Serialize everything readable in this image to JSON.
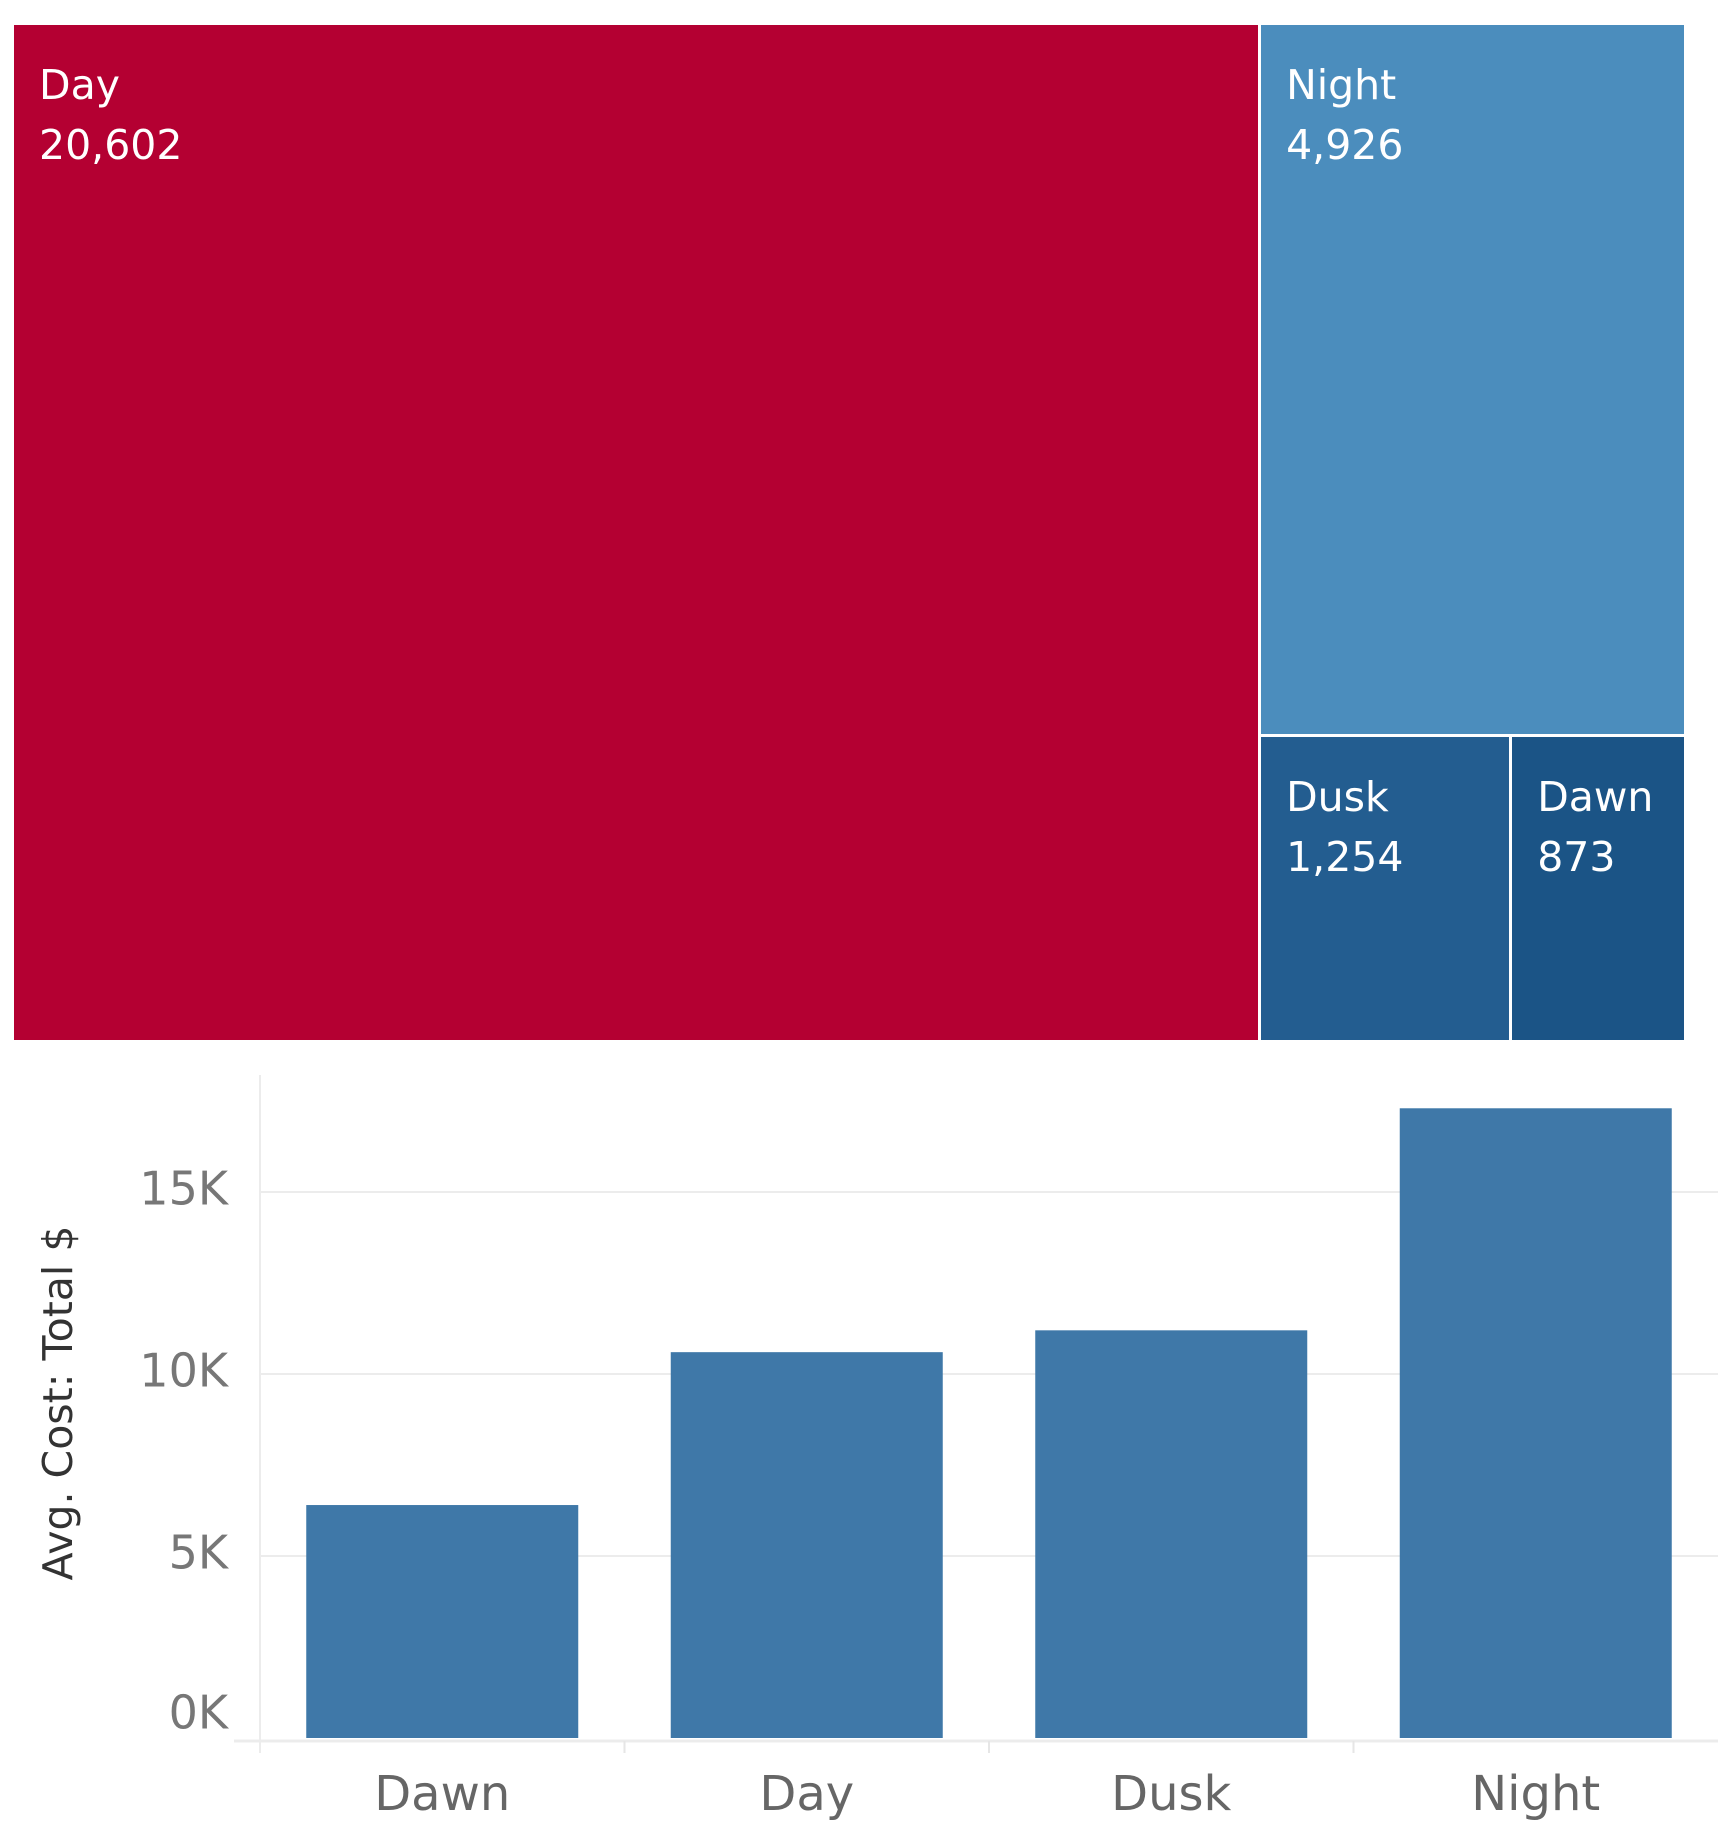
{
  "chart_data": [
    {
      "type": "treemap",
      "items": [
        {
          "label": "Day",
          "value": 20602,
          "value_text": "20,602",
          "color": "#b40032"
        },
        {
          "label": "Night",
          "value": 4926,
          "value_text": "4,926",
          "color": "#4b8dbd"
        },
        {
          "label": "Dusk",
          "value": 1254,
          "value_text": "1,254",
          "color": "#235d90"
        },
        {
          "label": "Dawn",
          "value": 873,
          "value_text": "873",
          "color": "#1b5486"
        }
      ]
    },
    {
      "type": "bar",
      "categories": [
        "Dawn",
        "Day",
        "Dusk",
        "Night"
      ],
      "values": [
        6400,
        10600,
        11200,
        17300
      ],
      "ylabel": "Avg. Cost: Total $",
      "yticks": [
        {
          "value": 0,
          "label": "0K"
        },
        {
          "value": 5000,
          "label": "5K"
        },
        {
          "value": 10000,
          "label": "10K"
        },
        {
          "value": 15000,
          "label": "15K"
        }
      ],
      "ylim": [
        0,
        18000
      ],
      "bar_color": "#3f78a8",
      "grid": true
    }
  ]
}
